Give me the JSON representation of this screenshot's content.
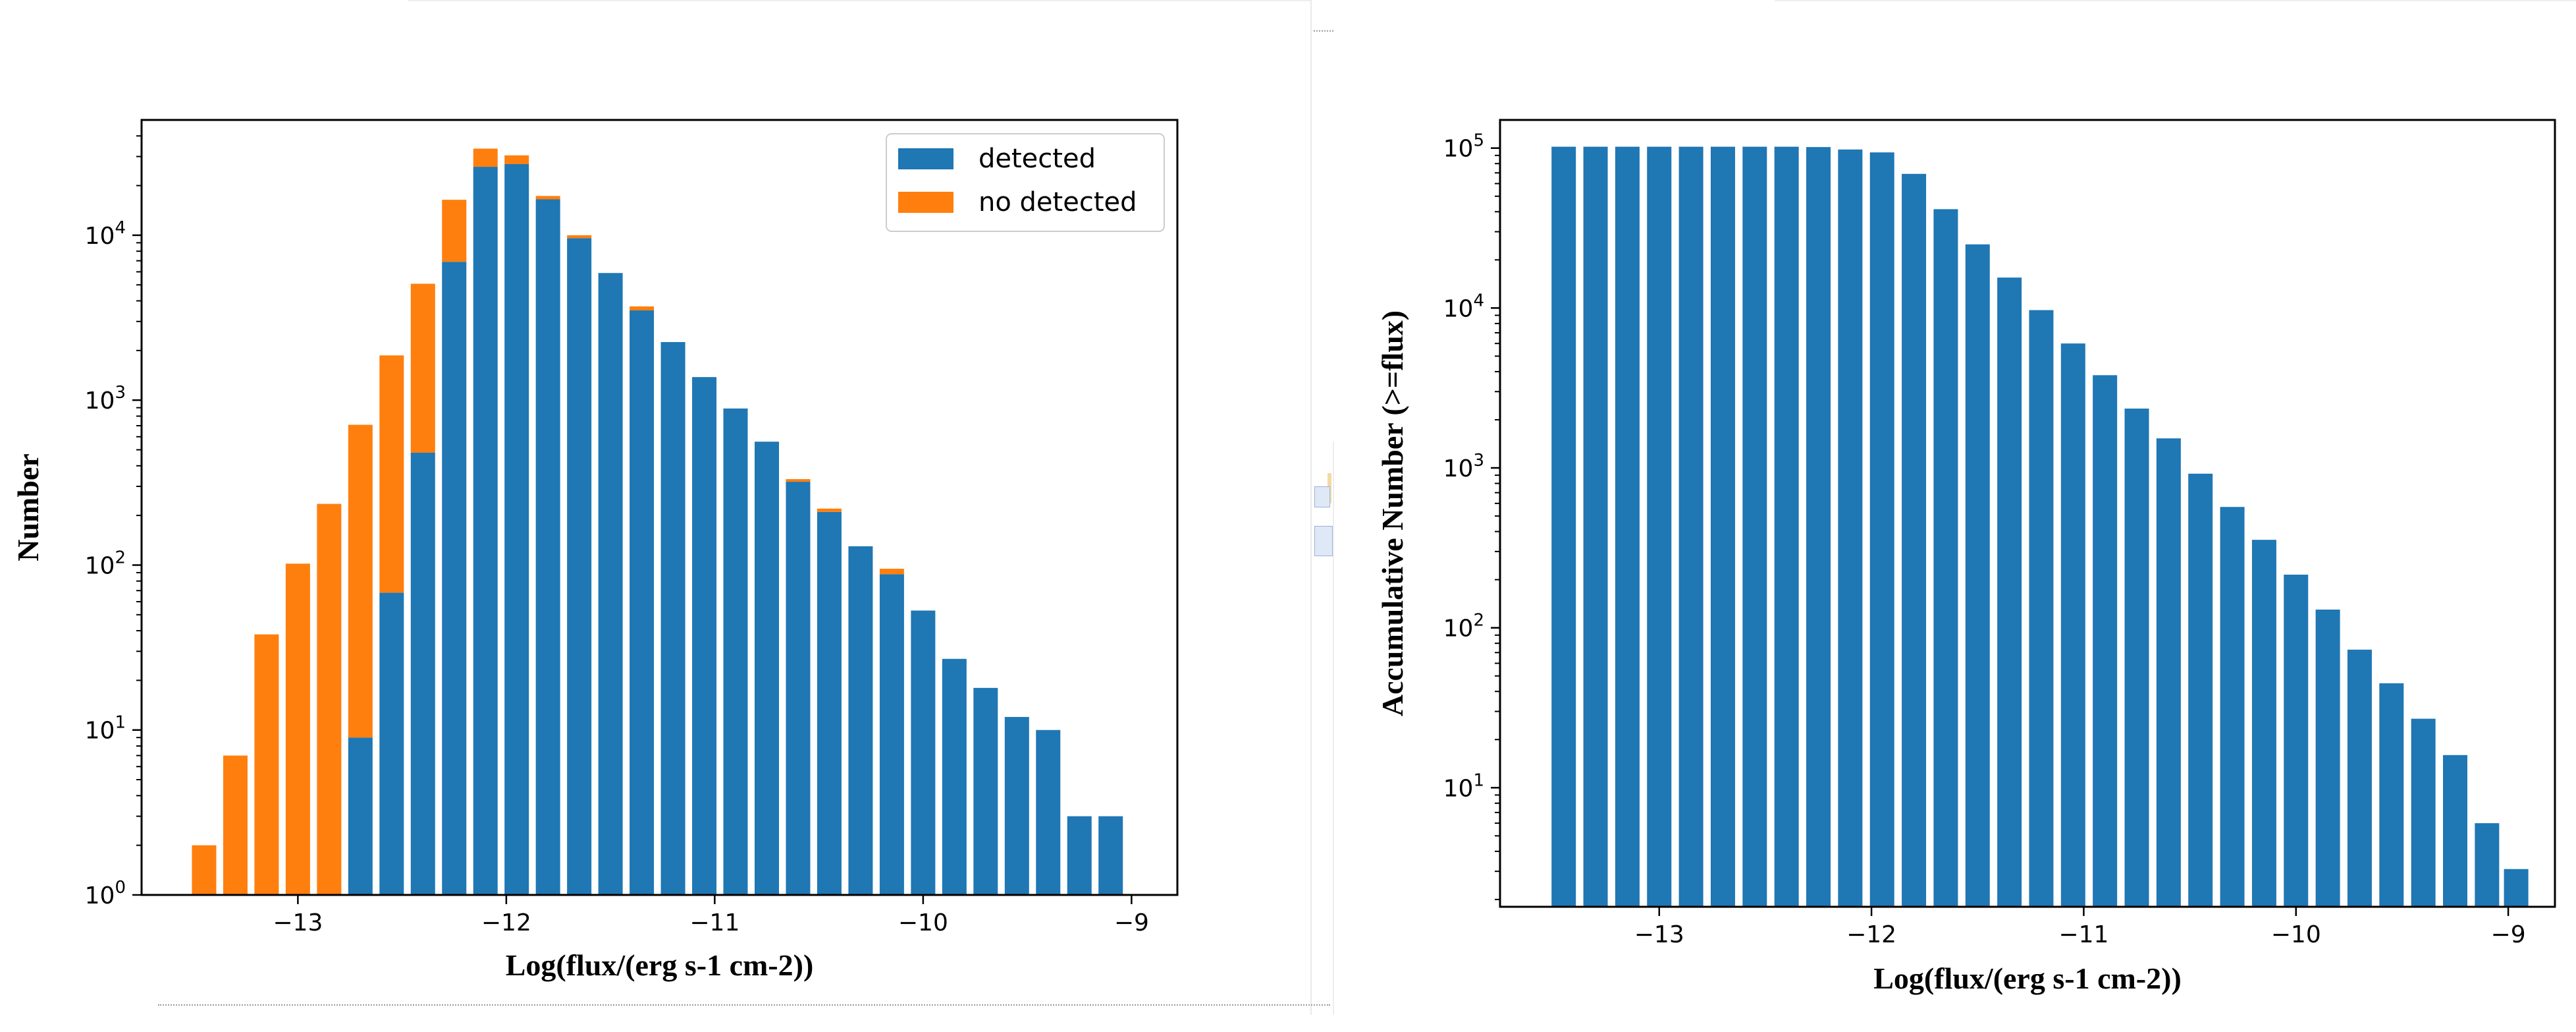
{
  "chart_data": [
    {
      "type": "bar",
      "stacked": true,
      "x": [
        -13.45,
        -13.3,
        -13.15,
        -13.0,
        -12.85,
        -12.7,
        -12.55,
        -12.4,
        -12.25,
        -12.1,
        -11.95,
        -11.8,
        -11.65,
        -11.5,
        -11.35,
        -11.2,
        -11.05,
        -10.9,
        -10.75,
        -10.6,
        -10.45,
        -10.3,
        -10.15,
        -10.0,
        -9.85,
        -9.7,
        -9.55,
        -9.4,
        -9.25,
        -9.1
      ],
      "series": [
        {
          "name": "detected",
          "color": "#1f77b4",
          "values": [
            0,
            0,
            0,
            0,
            0,
            9,
            68,
            480,
            6900,
            26000,
            27000,
            16500,
            9600,
            5900,
            3500,
            2250,
            1380,
            890,
            560,
            320,
            210,
            130,
            88,
            53,
            27,
            18,
            12,
            10,
            3,
            3
          ]
        },
        {
          "name": "no detected",
          "color": "#ff7f0e",
          "values": [
            2,
            7,
            38,
            102,
            235,
            700,
            1800,
            4600,
            9500,
            7500,
            3500,
            800,
            400,
            0,
            200,
            0,
            0,
            0,
            0,
            12,
            10,
            0,
            7,
            0,
            0,
            0,
            0,
            0,
            0,
            0
          ]
        }
      ],
      "xlabel": "Log(flux/(erg s-1 cm-2))",
      "ylabel": "Number",
      "xlim": [
        -13.75,
        -8.78
      ],
      "ylim": [
        1,
        50000
      ],
      "yscale": "log",
      "xticks": [
        -13,
        -12,
        -11,
        -10,
        -9
      ],
      "xtick_labels": [
        "−13",
        "−12",
        "−11",
        "−10",
        "−9"
      ],
      "yticks": [
        1,
        10,
        100,
        1000,
        10000
      ],
      "ytick_labels": [
        [
          "10",
          "0"
        ],
        [
          "10",
          "1"
        ],
        [
          "10",
          "2"
        ],
        [
          "10",
          "3"
        ],
        [
          "10",
          "4"
        ]
      ],
      "legend": "top-right",
      "grid": false
    },
    {
      "type": "bar",
      "x": [
        -13.45,
        -13.3,
        -13.15,
        -13.0,
        -12.85,
        -12.7,
        -12.55,
        -12.4,
        -12.25,
        -12.1,
        -11.95,
        -11.8,
        -11.65,
        -11.5,
        -11.35,
        -11.2,
        -11.05,
        -10.9,
        -10.75,
        -10.6,
        -10.45,
        -10.3,
        -10.15,
        -10.0,
        -9.85,
        -9.7,
        -9.55,
        -9.4,
        -9.25,
        -9.1
      ],
      "series": [
        {
          "color": "#1f77b4",
          "values": [
            102000,
            102000,
            102000,
            102000,
            102000,
            102000,
            102000,
            102000,
            101500,
            98000,
            94000,
            69000,
            41500,
            25000,
            15500,
            9700,
            6000,
            3800,
            2350,
            1530,
            920,
            570,
            355,
            215,
            130,
            73,
            45,
            27,
            16,
            6
          ]
        }
      ],
      "extra_last": {
        "x": -9.1,
        "value": 3.1
      },
      "xlabel": "Log(flux/(erg s-1 cm-2))",
      "ylabel": "Accumulative Number (>=flux)",
      "xlim": [
        -13.75,
        -8.78
      ],
      "ylim": [
        1.8,
        150000
      ],
      "yscale": "log",
      "xticks": [
        -13,
        -12,
        -11,
        -10,
        -9
      ],
      "xtick_labels": [
        "−13",
        "−12",
        "−11",
        "−10",
        "−9"
      ],
      "yticks": [
        10,
        100,
        1000,
        10000,
        100000
      ],
      "ytick_labels": [
        [
          "10",
          "1"
        ],
        [
          "10",
          "2"
        ],
        [
          "10",
          "3"
        ],
        [
          "10",
          "4"
        ],
        [
          "10",
          "5"
        ]
      ],
      "grid": false
    }
  ]
}
